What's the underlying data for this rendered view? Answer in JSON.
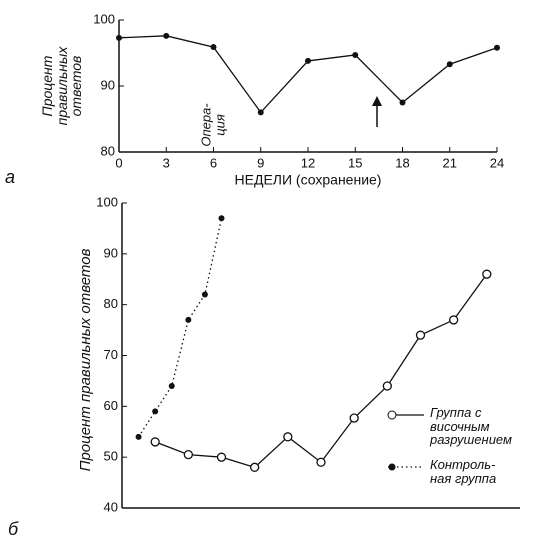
{
  "chart_data": [
    {
      "type": "line",
      "panel_label": "а",
      "y_label": "Процент\nправильных\nответов",
      "x_label": "НЕДЕЛИ (сохранение)",
      "annotation": "Опера-\nция",
      "series": [
        {
          "color": "#111111",
          "marker": "filled",
          "dash": "solid",
          "x": [
            0,
            3,
            6,
            9,
            12,
            15,
            18,
            21,
            24
          ],
          "values": [
            97.3,
            97.6,
            95.9,
            86,
            93.8,
            94.7,
            87.5,
            93.3,
            95.8
          ]
        }
      ],
      "xlim": [
        0,
        24
      ],
      "ylim": [
        80,
        100
      ],
      "xticks": [
        0,
        3,
        6,
        9,
        12,
        15,
        18,
        21,
        24
      ],
      "yticks": [
        80,
        90,
        100
      ]
    },
    {
      "type": "line",
      "panel_label": "б",
      "y_label": "Процент правильных ответов",
      "series": [
        {
          "name": "Группа с\nвисочным\nразрушением",
          "color": "#111111",
          "marker": "open",
          "dash": "solid",
          "x": [
            2,
            4,
            6,
            8,
            10,
            12,
            14,
            16,
            18,
            20,
            22
          ],
          "values": [
            53,
            50.5,
            50,
            48,
            54,
            49,
            57.7,
            64,
            74,
            77,
            86
          ]
        },
        {
          "name": "Контроль-\nная группа",
          "color": "#111111",
          "marker": "filled",
          "dash": "dotted",
          "x": [
            1,
            2,
            3,
            4,
            5,
            6
          ],
          "values": [
            54,
            59,
            64,
            77,
            82,
            97
          ]
        }
      ],
      "xlim": [
        0,
        24
      ],
      "ylim": [
        40,
        100
      ],
      "yticks": [
        40,
        50,
        60,
        70,
        80,
        90,
        100
      ]
    }
  ]
}
